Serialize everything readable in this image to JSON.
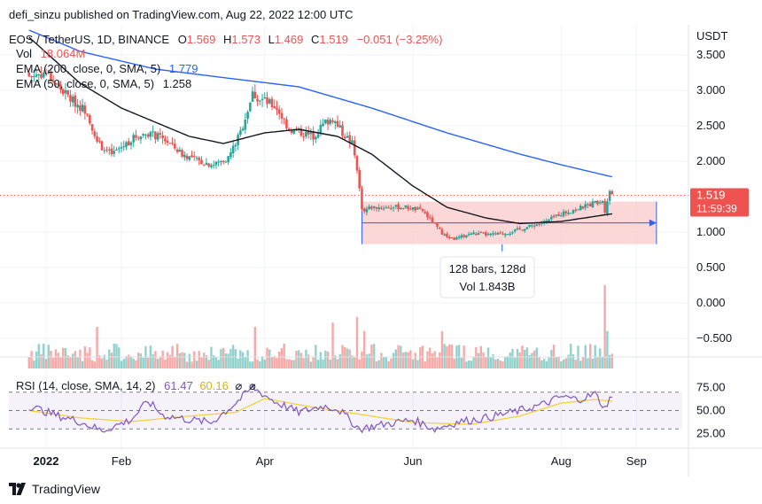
{
  "header": {
    "published_by": "defi_sinzu published on TradingView.com, Aug 22, 2022 12:00 UTC"
  },
  "footer": {
    "brand": "TradingView",
    "logo_icon": "tradingview-logo-icon"
  },
  "legend": {
    "symbol": "EOS / TetherUS, 1D, BINANCE",
    "ohlc": [
      {
        "key": "O",
        "value": "1.569"
      },
      {
        "key": "H",
        "value": "1.573"
      },
      {
        "key": "L",
        "value": "1.469"
      },
      {
        "key": "C",
        "value": "1.519"
      }
    ],
    "change": "−0.051 (−3.25%)",
    "vol_label": "Vol",
    "vol_value": "18.064M",
    "ema200_label": "EMA (200, close, 0, SMA, 5)",
    "ema200_value": "1.779",
    "ema50_label": "EMA (50, close, 0, SMA, 5)",
    "ema50_value": "1.258"
  },
  "price_axis": {
    "currency": "USDT"
  },
  "last_price": {
    "value": "1.519",
    "countdown": "11:59:39"
  },
  "range_tool": {
    "bars": "128 bars, 128d",
    "volume": "Vol 1.843B"
  },
  "rsi": {
    "label": "RSI (14, close, SMA, 14, 2)",
    "value": "61.47",
    "sma_value": "60.16",
    "flags": [
      "⌀",
      "⌀"
    ]
  },
  "colors": {
    "up": "#26a69a",
    "down": "#ef5350",
    "ema200": "#2962ff",
    "ema50": "#131722",
    "rsi": "#7e57c2",
    "rsi_sma": "#f5d13d",
    "range_fill": "#f9c9c9",
    "range_line": "#2962ff"
  },
  "chart_data": [
    {
      "type": "candlestick",
      "title": "EOS / TetherUS, 1D, BINANCE",
      "x_tick_labels": [
        "2022",
        "Feb",
        "Apr",
        "Jun",
        "Aug",
        "Sep"
      ],
      "x_tick_dates": [
        "2022-01-01",
        "2022-02-01",
        "2022-04-01",
        "2022-06-01",
        "2022-08-01",
        "2022-09-01"
      ],
      "y_tick_labels": [
        "3.500",
        "3.000",
        "2.500",
        "2.000",
        "1.500",
        "1.000",
        "0.500",
        "0.000",
        "−0.500"
      ],
      "ylim": [
        -0.8,
        3.85
      ],
      "price_anchors": [
        {
          "date": "2021-12-25",
          "close": 3.2
        },
        {
          "date": "2022-01-01",
          "close": 3.25
        },
        {
          "date": "2022-01-06",
          "close": 3.05
        },
        {
          "date": "2022-01-12",
          "close": 2.85
        },
        {
          "date": "2022-01-18",
          "close": 2.7
        },
        {
          "date": "2022-01-22",
          "close": 2.25
        },
        {
          "date": "2022-01-28",
          "close": 2.1
        },
        {
          "date": "2022-02-07",
          "close": 2.35
        },
        {
          "date": "2022-02-12",
          "close": 2.4
        },
        {
          "date": "2022-02-19",
          "close": 2.3
        },
        {
          "date": "2022-02-26",
          "close": 2.1
        },
        {
          "date": "2022-03-05",
          "close": 2.0
        },
        {
          "date": "2022-03-11",
          "close": 1.95
        },
        {
          "date": "2022-03-17",
          "close": 2.05
        },
        {
          "date": "2022-03-22",
          "close": 2.4
        },
        {
          "date": "2022-03-27",
          "close": 2.95
        },
        {
          "date": "2022-04-01",
          "close": 2.85
        },
        {
          "date": "2022-04-06",
          "close": 2.75
        },
        {
          "date": "2022-04-11",
          "close": 2.45
        },
        {
          "date": "2022-04-16",
          "close": 2.4
        },
        {
          "date": "2022-04-21",
          "close": 2.35
        },
        {
          "date": "2022-04-26",
          "close": 2.55
        },
        {
          "date": "2022-04-29",
          "close": 2.6
        },
        {
          "date": "2022-05-03",
          "close": 2.4
        },
        {
          "date": "2022-05-07",
          "close": 2.25
        },
        {
          "date": "2022-05-09",
          "close": 1.9
        },
        {
          "date": "2022-05-11",
          "close": 1.3
        },
        {
          "date": "2022-05-15",
          "close": 1.35
        },
        {
          "date": "2022-05-22",
          "close": 1.35
        },
        {
          "date": "2022-05-29",
          "close": 1.35
        },
        {
          "date": "2022-06-05",
          "close": 1.3
        },
        {
          "date": "2022-06-10",
          "close": 1.1
        },
        {
          "date": "2022-06-14",
          "close": 0.95
        },
        {
          "date": "2022-06-18",
          "close": 0.9
        },
        {
          "date": "2022-06-25",
          "close": 0.98
        },
        {
          "date": "2022-07-02",
          "close": 0.96
        },
        {
          "date": "2022-07-09",
          "close": 0.98
        },
        {
          "date": "2022-07-16",
          "close": 1.05
        },
        {
          "date": "2022-07-21",
          "close": 1.1
        },
        {
          "date": "2022-07-26",
          "close": 1.15
        },
        {
          "date": "2022-07-31",
          "close": 1.25
        },
        {
          "date": "2022-08-05",
          "close": 1.3
        },
        {
          "date": "2022-08-10",
          "close": 1.35
        },
        {
          "date": "2022-08-15",
          "close": 1.42
        },
        {
          "date": "2022-08-18",
          "close": 1.45
        },
        {
          "date": "2022-08-19",
          "close": 1.3
        },
        {
          "date": "2022-08-20",
          "close": 1.45
        },
        {
          "date": "2022-08-21",
          "close": 1.57
        },
        {
          "date": "2022-08-22",
          "close": 1.519
        }
      ],
      "ema200_anchors": [
        {
          "date": "2021-12-25",
          "value": 3.85
        },
        {
          "date": "2022-01-15",
          "value": 3.55
        },
        {
          "date": "2022-02-15",
          "value": 3.3
        },
        {
          "date": "2022-03-15",
          "value": 3.18
        },
        {
          "date": "2022-04-15",
          "value": 3.05
        },
        {
          "date": "2022-05-15",
          "value": 2.75
        },
        {
          "date": "2022-06-15",
          "value": 2.4
        },
        {
          "date": "2022-07-15",
          "value": 2.1
        },
        {
          "date": "2022-08-01",
          "value": 1.95
        },
        {
          "date": "2022-08-22",
          "value": 1.779
        }
      ],
      "ema50_anchors": [
        {
          "date": "2021-12-25",
          "value": 3.75
        },
        {
          "date": "2022-01-15",
          "value": 3.1
        },
        {
          "date": "2022-02-01",
          "value": 2.75
        },
        {
          "date": "2022-02-15",
          "value": 2.55
        },
        {
          "date": "2022-03-01",
          "value": 2.35
        },
        {
          "date": "2022-03-15",
          "value": 2.25
        },
        {
          "date": "2022-04-01",
          "value": 2.4
        },
        {
          "date": "2022-04-15",
          "value": 2.45
        },
        {
          "date": "2022-05-01",
          "value": 2.35
        },
        {
          "date": "2022-05-15",
          "value": 2.1
        },
        {
          "date": "2022-06-01",
          "value": 1.65
        },
        {
          "date": "2022-06-15",
          "value": 1.35
        },
        {
          "date": "2022-07-01",
          "value": 1.2
        },
        {
          "date": "2022-07-15",
          "value": 1.12
        },
        {
          "date": "2022-08-01",
          "value": 1.15
        },
        {
          "date": "2022-08-22",
          "value": 1.258
        }
      ],
      "range_box": {
        "start": "2022-05-11",
        "end": "2022-08-22",
        "high": 1.43,
        "low": 0.83,
        "measure_line": 1.13
      },
      "volume_spikes": [
        {
          "date": "2022-01-22",
          "rel": 0.5
        },
        {
          "date": "2022-03-28",
          "rel": 0.5
        },
        {
          "date": "2022-04-29",
          "rel": 0.55
        },
        {
          "date": "2022-05-09",
          "rel": 0.62
        },
        {
          "date": "2022-05-12",
          "rel": 0.45
        },
        {
          "date": "2022-06-13",
          "rel": 0.45
        },
        {
          "date": "2022-08-19",
          "rel": 1.0
        },
        {
          "date": "2022-08-20",
          "rel": 0.45
        }
      ]
    },
    {
      "type": "line",
      "title": "RSI (14, close, SMA, 14, 2)",
      "y_tick_labels": [
        "75.00",
        "50.00",
        "25.00"
      ],
      "ylim": [
        18,
        82
      ],
      "bands": [
        70,
        50,
        30
      ],
      "rsi_anchors": [
        {
          "date": "2021-12-25",
          "value": 55
        },
        {
          "date": "2022-01-05",
          "value": 45
        },
        {
          "date": "2022-01-15",
          "value": 38
        },
        {
          "date": "2022-01-24",
          "value": 28
        },
        {
          "date": "2022-02-05",
          "value": 40
        },
        {
          "date": "2022-02-12",
          "value": 60
        },
        {
          "date": "2022-02-18",
          "value": 45
        },
        {
          "date": "2022-03-01",
          "value": 40
        },
        {
          "date": "2022-03-10",
          "value": 37
        },
        {
          "date": "2022-03-20",
          "value": 58
        },
        {
          "date": "2022-03-27",
          "value": 75
        },
        {
          "date": "2022-04-05",
          "value": 60
        },
        {
          "date": "2022-04-15",
          "value": 48
        },
        {
          "date": "2022-04-25",
          "value": 55
        },
        {
          "date": "2022-05-01",
          "value": 52
        },
        {
          "date": "2022-05-10",
          "value": 30
        },
        {
          "date": "2022-05-20",
          "value": 35
        },
        {
          "date": "2022-06-01",
          "value": 40
        },
        {
          "date": "2022-06-10",
          "value": 30
        },
        {
          "date": "2022-06-20",
          "value": 38
        },
        {
          "date": "2022-07-01",
          "value": 42
        },
        {
          "date": "2022-07-15",
          "value": 50
        },
        {
          "date": "2022-07-25",
          "value": 57
        },
        {
          "date": "2022-08-01",
          "value": 65
        },
        {
          "date": "2022-08-08",
          "value": 62
        },
        {
          "date": "2022-08-15",
          "value": 68
        },
        {
          "date": "2022-08-19",
          "value": 52
        },
        {
          "date": "2022-08-21",
          "value": 65
        },
        {
          "date": "2022-08-22",
          "value": 61.47
        }
      ],
      "sma_anchors": [
        {
          "date": "2021-12-25",
          "value": 50
        },
        {
          "date": "2022-01-15",
          "value": 42
        },
        {
          "date": "2022-02-05",
          "value": 38
        },
        {
          "date": "2022-03-01",
          "value": 44
        },
        {
          "date": "2022-03-20",
          "value": 48
        },
        {
          "date": "2022-04-01",
          "value": 63
        },
        {
          "date": "2022-04-20",
          "value": 54
        },
        {
          "date": "2022-05-10",
          "value": 46
        },
        {
          "date": "2022-06-01",
          "value": 37
        },
        {
          "date": "2022-06-25",
          "value": 35
        },
        {
          "date": "2022-07-15",
          "value": 44
        },
        {
          "date": "2022-08-01",
          "value": 58
        },
        {
          "date": "2022-08-15",
          "value": 62
        },
        {
          "date": "2022-08-22",
          "value": 60.16
        }
      ]
    }
  ]
}
